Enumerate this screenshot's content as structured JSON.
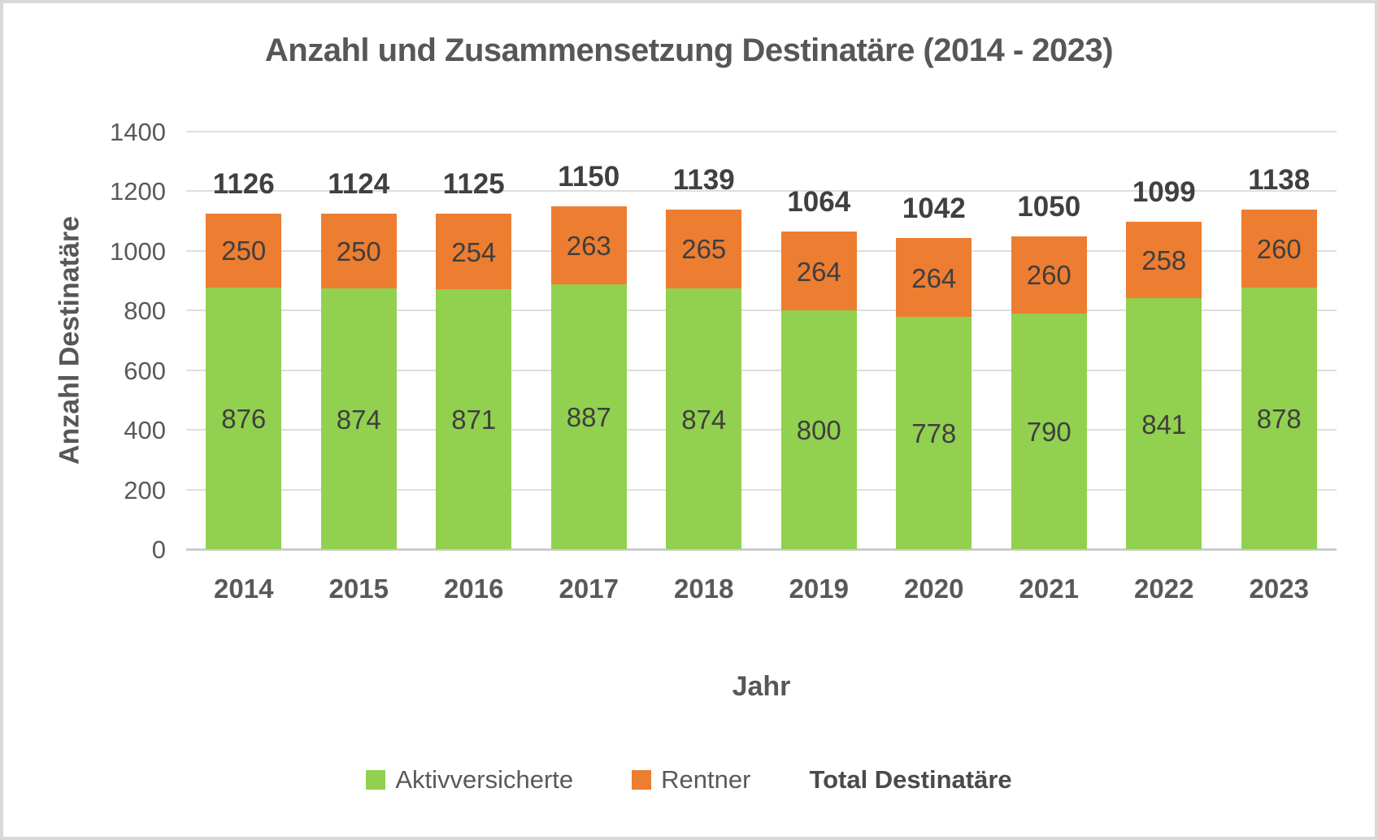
{
  "title": "Anzahl und Zusammensetzung Destinatäre (2014 - 2023)",
  "colors": {
    "aktivversicherte": "#92D050",
    "rentner": "#ED7D31",
    "text": "#595959",
    "gridline": "#DEDEDE",
    "frame": "#D9D9D9"
  },
  "chart_data": {
    "type": "bar",
    "stacked": true,
    "title": "Anzahl und Zusammensetzung Destinatäre (2014 - 2023)",
    "xlabel": "Jahr",
    "ylabel": "Anzahl Destinatäre",
    "ylim": [
      0,
      1400
    ],
    "ytick_interval": 200,
    "yticks": [
      0,
      200,
      400,
      600,
      800,
      1000,
      1200,
      1400
    ],
    "grid": true,
    "legend_position": "bottom",
    "categories": [
      "2014",
      "2015",
      "2016",
      "2017",
      "2018",
      "2019",
      "2020",
      "2021",
      "2022",
      "2023"
    ],
    "series": [
      {
        "name": "Aktivversicherte",
        "color": "#92D050",
        "values": [
          876,
          874,
          871,
          887,
          874,
          800,
          778,
          790,
          841,
          878
        ]
      },
      {
        "name": "Rentner",
        "color": "#ED7D31",
        "values": [
          250,
          250,
          254,
          263,
          265,
          264,
          264,
          260,
          258,
          260
        ]
      }
    ],
    "totals": {
      "name": "Total Destinatäre",
      "values": [
        1126,
        1124,
        1125,
        1150,
        1139,
        1064,
        1042,
        1050,
        1099,
        1138
      ]
    },
    "legend": [
      "Aktivversicherte",
      "Rentner",
      "Total Destinatäre"
    ]
  }
}
